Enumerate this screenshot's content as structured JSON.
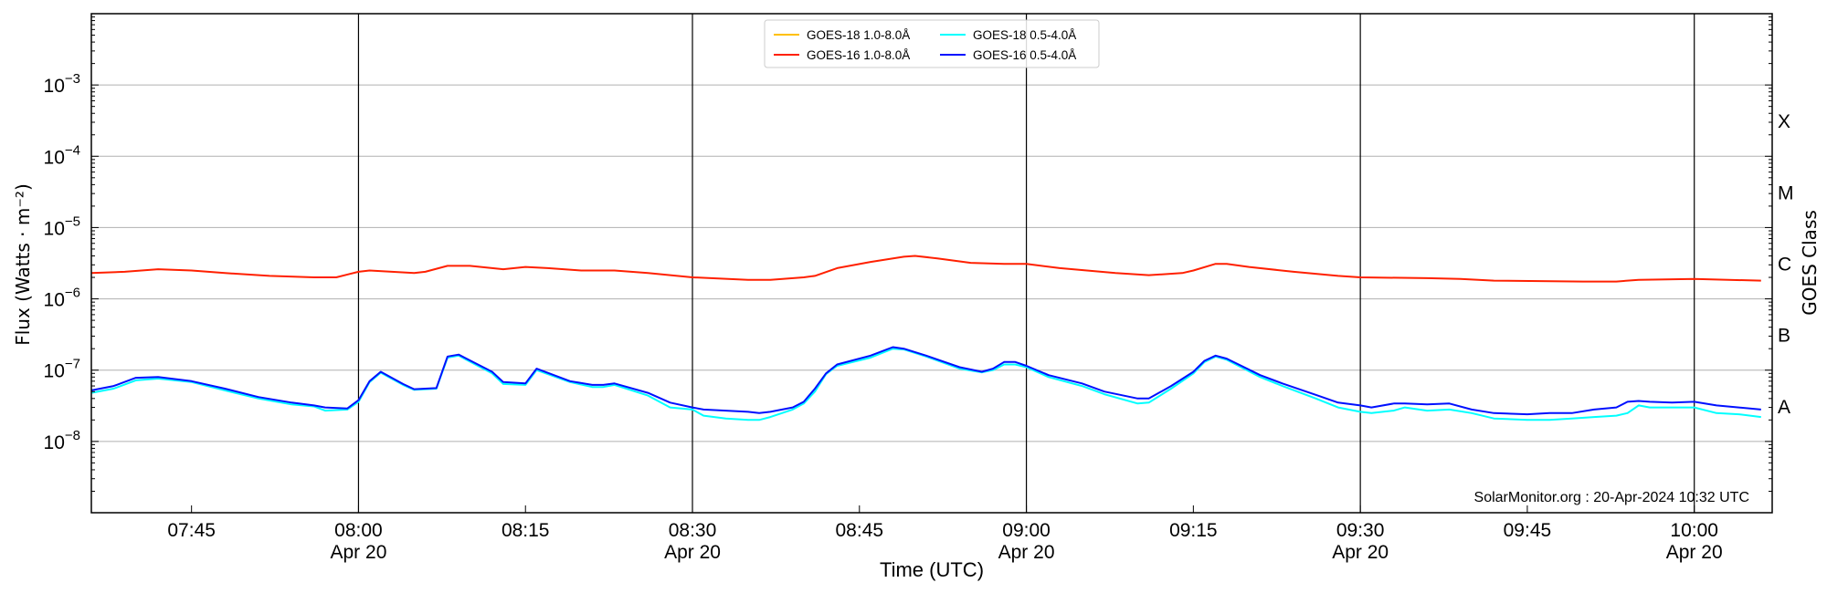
{
  "chart_data": {
    "type": "line",
    "title": "",
    "xlabel": "Time (UTC)",
    "ylabel": "Flux (Watts · m⁻²)",
    "ylabel_right": "GOES Class",
    "yscale": "log",
    "ylim": [
      1e-09,
      0.01
    ],
    "xlim": [
      "07:36",
      "10:07"
    ],
    "grid": "horizontal at decades; vertical black lines every 30 min",
    "legend_placement": "top-center",
    "y_ticks": [
      {
        "exp": "-8",
        "value": 1e-08
      },
      {
        "exp": "-7",
        "value": 1e-07
      },
      {
        "exp": "-6",
        "value": 1e-06
      },
      {
        "exp": "-5",
        "value": 1e-05
      },
      {
        "exp": "-4",
        "value": 0.0001
      },
      {
        "exp": "-3",
        "value": 0.001
      }
    ],
    "x_ticks": [
      {
        "time": "07:45",
        "label": "07:45",
        "date": ""
      },
      {
        "time": "08:00",
        "label": "08:00",
        "date": "Apr 20"
      },
      {
        "time": "08:15",
        "label": "08:15",
        "date": ""
      },
      {
        "time": "08:30",
        "label": "08:30",
        "date": "Apr 20"
      },
      {
        "time": "08:45",
        "label": "08:45",
        "date": ""
      },
      {
        "time": "09:00",
        "label": "09:00",
        "date": "Apr 20"
      },
      {
        "time": "09:15",
        "label": "09:15",
        "date": ""
      },
      {
        "time": "09:30",
        "label": "09:30",
        "date": "Apr 20"
      },
      {
        "time": "09:45",
        "label": "09:45",
        "date": ""
      },
      {
        "time": "10:00",
        "label": "10:00",
        "date": "Apr 20"
      }
    ],
    "class_labels": [
      {
        "label": "A",
        "low": 1e-08,
        "high": 1e-07
      },
      {
        "label": "B",
        "low": 1e-07,
        "high": 1e-06
      },
      {
        "label": "C",
        "low": 1e-06,
        "high": 1e-05
      },
      {
        "label": "M",
        "low": 1e-05,
        "high": 0.0001
      },
      {
        "label": "X",
        "low": 0.0001,
        "high": 0.001
      }
    ],
    "series": [
      {
        "name": "GOES-18 1.0-8.0Å",
        "color": "#ffc000",
        "x": [],
        "values": []
      },
      {
        "name": "GOES-16 1.0-8.0Å",
        "color": "#ff2000",
        "x": [
          "07:36",
          "07:39",
          "07:42",
          "07:45",
          "07:48",
          "07:52",
          "07:56",
          "07:58",
          "08:00",
          "08:01",
          "08:03",
          "08:05",
          "08:06",
          "08:08",
          "08:10",
          "08:13",
          "08:15",
          "08:17",
          "08:20",
          "08:23",
          "08:26",
          "08:30",
          "08:35",
          "08:37",
          "08:40",
          "08:41",
          "08:43",
          "08:46",
          "08:49",
          "08:50",
          "08:52",
          "08:55",
          "08:58",
          "09:00",
          "09:03",
          "09:08",
          "09:11",
          "09:14",
          "09:15",
          "09:17",
          "09:18",
          "09:20",
          "09:24",
          "09:28",
          "09:30",
          "09:36",
          "09:39",
          "09:42",
          "09:50",
          "09:53",
          "09:55",
          "10:00",
          "10:06"
        ],
        "values": [
          2.3e-06,
          2.4e-06,
          2.6e-06,
          2.5e-06,
          2.3e-06,
          2.1e-06,
          2e-06,
          2e-06,
          2.4e-06,
          2.5e-06,
          2.4e-06,
          2.3e-06,
          2.4e-06,
          2.9e-06,
          2.9e-06,
          2.6e-06,
          2.8e-06,
          2.7e-06,
          2.5e-06,
          2.5e-06,
          2.3e-06,
          2e-06,
          1.85e-06,
          1.85e-06,
          2e-06,
          2.1e-06,
          2.7e-06,
          3.3e-06,
          3.9e-06,
          4e-06,
          3.7e-06,
          3.2e-06,
          3.1e-06,
          3.1e-06,
          2.7e-06,
          2.3e-06,
          2.15e-06,
          2.3e-06,
          2.5e-06,
          3.1e-06,
          3.1e-06,
          2.8e-06,
          2.4e-06,
          2.1e-06,
          2e-06,
          1.95e-06,
          1.9e-06,
          1.8e-06,
          1.75e-06,
          1.75e-06,
          1.85e-06,
          1.9e-06,
          1.8e-06
        ]
      },
      {
        "name": "GOES-18 0.5-4.0Å",
        "color": "#00ffff",
        "x": [
          "07:36",
          "07:38",
          "07:40",
          "07:42",
          "07:45",
          "07:48",
          "07:51",
          "07:54",
          "07:56",
          "07:57",
          "07:59",
          "08:00",
          "08:01",
          "08:02",
          "08:04",
          "08:05",
          "08:07",
          "08:08",
          "08:09",
          "08:12",
          "08:13",
          "08:15",
          "08:16",
          "08:19",
          "08:21",
          "08:22",
          "08:23",
          "08:26",
          "08:28",
          "08:30",
          "08:31",
          "08:33",
          "08:35",
          "08:36",
          "08:37",
          "08:39",
          "08:40",
          "08:41",
          "08:42",
          "08:43",
          "08:46",
          "08:48",
          "08:49",
          "08:51",
          "08:54",
          "08:56",
          "08:57",
          "08:58",
          "08:59",
          "09:00",
          "09:02",
          "09:05",
          "09:07",
          "09:10",
          "09:11",
          "09:13",
          "09:15",
          "09:16",
          "09:17",
          "09:18",
          "09:21",
          "09:23",
          "09:26",
          "09:28",
          "09:30",
          "09:31",
          "09:33",
          "09:34",
          "09:36",
          "09:38",
          "09:40",
          "09:42",
          "09:45",
          "09:47",
          "09:49",
          "09:51",
          "09:53",
          "09:54",
          "09:55",
          "09:56",
          "09:58",
          "10:00",
          "10:02",
          "10:04",
          "10:06"
        ],
        "values": [
          4.8e-08,
          5.5e-08,
          7.2e-08,
          7.6e-08,
          6.8e-08,
          5.2e-08,
          4e-08,
          3.3e-08,
          3.1e-08,
          2.7e-08,
          2.8e-08,
          3.6e-08,
          6.8e-08,
          9.2e-08,
          6.2e-08,
          5.3e-08,
          5.5e-08,
          1.5e-07,
          1.6e-07,
          9e-08,
          6.4e-08,
          6.2e-08,
          1e-07,
          6.8e-08,
          5.8e-08,
          5.8e-08,
          6.2e-08,
          4.4e-08,
          3e-08,
          2.8e-08,
          2.3e-08,
          2.1e-08,
          2e-08,
          2e-08,
          2.2e-08,
          2.8e-08,
          3.4e-08,
          5e-08,
          8.8e-08,
          1.15e-07,
          1.5e-07,
          2e-07,
          1.95e-07,
          1.55e-07,
          1.05e-07,
          9.3e-08,
          1e-07,
          1.2e-07,
          1.2e-07,
          1.1e-07,
          8e-08,
          6e-08,
          4.6e-08,
          3.4e-08,
          3.5e-08,
          5.5e-08,
          9e-08,
          1.3e-07,
          1.55e-07,
          1.4e-07,
          8e-08,
          6e-08,
          4e-08,
          3e-08,
          2.6e-08,
          2.5e-08,
          2.7e-08,
          3e-08,
          2.7e-08,
          2.8e-08,
          2.5e-08,
          2.1e-08,
          2e-08,
          2e-08,
          2.1e-08,
          2.2e-08,
          2.3e-08,
          2.5e-08,
          3.2e-08,
          3e-08,
          3e-08,
          3e-08,
          2.5e-08,
          2.4e-08,
          2.2e-08
        ]
      },
      {
        "name": "GOES-16 0.5-4.0Å",
        "color": "#0010ff",
        "x": [
          "07:36",
          "07:38",
          "07:40",
          "07:42",
          "07:45",
          "07:48",
          "07:51",
          "07:54",
          "07:56",
          "07:57",
          "07:59",
          "08:00",
          "08:01",
          "08:02",
          "08:04",
          "08:05",
          "08:07",
          "08:08",
          "08:09",
          "08:12",
          "08:13",
          "08:15",
          "08:16",
          "08:19",
          "08:21",
          "08:22",
          "08:23",
          "08:26",
          "08:28",
          "08:30",
          "08:31",
          "08:33",
          "08:35",
          "08:36",
          "08:37",
          "08:39",
          "08:40",
          "08:41",
          "08:42",
          "08:43",
          "08:46",
          "08:48",
          "08:49",
          "08:51",
          "08:54",
          "08:56",
          "08:57",
          "08:58",
          "08:59",
          "09:00",
          "09:02",
          "09:05",
          "09:07",
          "09:10",
          "09:11",
          "09:13",
          "09:15",
          "09:16",
          "09:17",
          "09:18",
          "09:21",
          "09:23",
          "09:26",
          "09:28",
          "09:30",
          "09:31",
          "09:33",
          "09:34",
          "09:36",
          "09:38",
          "09:40",
          "09:42",
          "09:45",
          "09:47",
          "09:49",
          "09:51",
          "09:53",
          "09:54",
          "09:55",
          "09:56",
          "09:58",
          "10:00",
          "10:02",
          "10:04",
          "10:06"
        ],
        "values": [
          5.2e-08,
          6e-08,
          7.8e-08,
          8e-08,
          7e-08,
          5.5e-08,
          4.2e-08,
          3.5e-08,
          3.2e-08,
          3e-08,
          2.9e-08,
          3.8e-08,
          7e-08,
          9.5e-08,
          6.4e-08,
          5.4e-08,
          5.6e-08,
          1.55e-07,
          1.65e-07,
          9.5e-08,
          6.8e-08,
          6.5e-08,
          1.05e-07,
          7e-08,
          6.2e-08,
          6.2e-08,
          6.5e-08,
          4.8e-08,
          3.5e-08,
          3e-08,
          2.8e-08,
          2.7e-08,
          2.6e-08,
          2.5e-08,
          2.6e-08,
          3e-08,
          3.6e-08,
          5.5e-08,
          9e-08,
          1.2e-07,
          1.6e-07,
          2.1e-07,
          2e-07,
          1.6e-07,
          1.1e-07,
          9.5e-08,
          1.05e-07,
          1.3e-07,
          1.3e-07,
          1.15e-07,
          8.5e-08,
          6.5e-08,
          5e-08,
          4e-08,
          4e-08,
          6e-08,
          9.5e-08,
          1.35e-07,
          1.6e-07,
          1.45e-07,
          8.5e-08,
          6.5e-08,
          4.5e-08,
          3.5e-08,
          3.2e-08,
          3e-08,
          3.4e-08,
          3.4e-08,
          3.3e-08,
          3.4e-08,
          2.8e-08,
          2.5e-08,
          2.4e-08,
          2.5e-08,
          2.5e-08,
          2.8e-08,
          3e-08,
          3.6e-08,
          3.7e-08,
          3.6e-08,
          3.5e-08,
          3.6e-08,
          3.2e-08,
          3e-08,
          2.8e-08
        ]
      }
    ],
    "watermark": "SolarMonitor.org : 20-Apr-2024 10:32 UTC"
  }
}
